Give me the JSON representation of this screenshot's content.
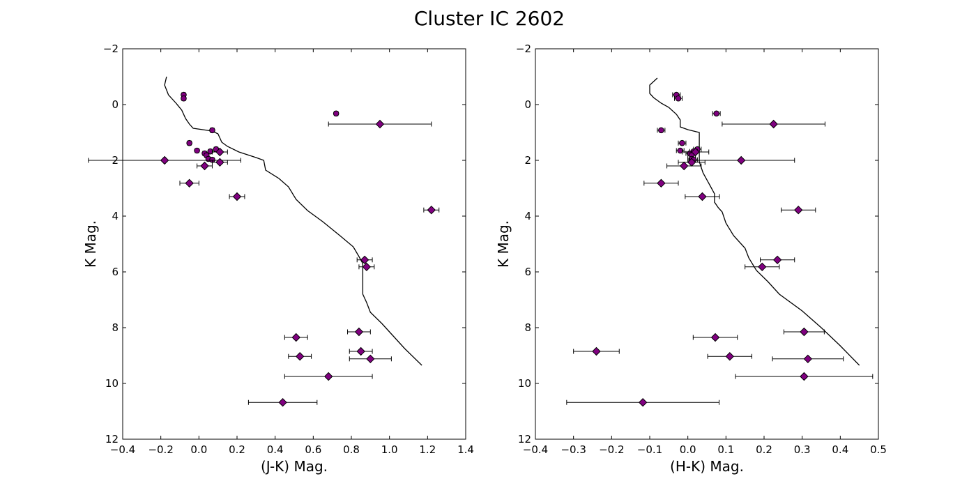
{
  "title": "Cluster IC 2602",
  "chart_data": [
    {
      "type": "scatter",
      "xlabel": "(J-K) Mag.",
      "ylabel": "K Mag.",
      "xlim": [
        -0.4,
        1.4
      ],
      "ylim": [
        12,
        -2
      ],
      "y_inverted": true,
      "xticks": [
        -0.4,
        -0.2,
        0.0,
        0.2,
        0.4,
        0.6,
        0.8,
        1.0,
        1.2,
        1.4
      ],
      "xtick_labels": [
        "−0.4",
        "−0.2",
        "0.0",
        "0.2",
        "0.4",
        "0.6",
        "0.8",
        "1.0",
        "1.2",
        "1.4"
      ],
      "yticks": [
        -2,
        0,
        2,
        4,
        6,
        8,
        10,
        12
      ],
      "ytick_labels": [
        "−2",
        "0",
        "2",
        "4",
        "6",
        "8",
        "10",
        "12"
      ],
      "grid": false,
      "sequence_line": [
        [
          -0.17,
          -1.0
        ],
        [
          -0.18,
          -0.7
        ],
        [
          -0.16,
          -0.35
        ],
        [
          -0.12,
          -0.05
        ],
        [
          -0.09,
          0.2
        ],
        [
          -0.07,
          0.5
        ],
        [
          -0.05,
          0.7
        ],
        [
          -0.03,
          0.85
        ],
        [
          0.02,
          0.9
        ],
        [
          0.07,
          0.95
        ],
        [
          0.1,
          1.05
        ],
        [
          0.12,
          1.35
        ],
        [
          0.15,
          1.5
        ],
        [
          0.21,
          1.7
        ],
        [
          0.3,
          1.9
        ],
        [
          0.34,
          2.0
        ],
        [
          0.35,
          2.35
        ],
        [
          0.42,
          2.65
        ],
        [
          0.47,
          2.95
        ],
        [
          0.51,
          3.4
        ],
        [
          0.57,
          3.8
        ],
        [
          0.65,
          4.2
        ],
        [
          0.74,
          4.7
        ],
        [
          0.81,
          5.1
        ],
        [
          0.84,
          5.45
        ],
        [
          0.86,
          5.7
        ],
        [
          0.86,
          6.1
        ],
        [
          0.86,
          6.45
        ],
        [
          0.86,
          6.8
        ],
        [
          0.88,
          7.1
        ],
        [
          0.9,
          7.45
        ],
        [
          0.96,
          7.85
        ],
        [
          1.02,
          8.3
        ],
        [
          1.08,
          8.75
        ],
        [
          1.17,
          9.35
        ]
      ],
      "circles": [
        {
          "x": -0.08,
          "y": -0.35,
          "xerr": 0.01
        },
        {
          "x": -0.08,
          "y": -0.22,
          "xerr": 0.01
        },
        {
          "x": 0.72,
          "y": 0.32,
          "xerr": 0.01
        },
        {
          "x": 0.07,
          "y": 0.92,
          "xerr": 0.01
        },
        {
          "x": -0.05,
          "y": 1.38,
          "xerr": 0.01
        },
        {
          "x": 0.09,
          "y": 1.6,
          "xerr": 0.01
        },
        {
          "x": -0.01,
          "y": 1.65,
          "xerr": 0.01
        },
        {
          "x": 0.06,
          "y": 1.68,
          "xerr": 0.01
        },
        {
          "x": 0.03,
          "y": 1.75,
          "xerr": 0.01
        },
        {
          "x": 0.04,
          "y": 1.82,
          "xerr": 0.01
        },
        {
          "x": 0.05,
          "y": 1.95,
          "xerr": 0.01
        },
        {
          "x": 0.07,
          "y": 1.98,
          "xerr": 0.01
        }
      ],
      "diamonds": [
        {
          "x": 0.95,
          "y": 0.7,
          "xerr": 0.27
        },
        {
          "x": 0.11,
          "y": 1.7,
          "xerr": 0.04
        },
        {
          "x": -0.18,
          "y": 2.0,
          "xerr": 0.4
        },
        {
          "x": 0.11,
          "y": 2.07,
          "xerr": 0.04
        },
        {
          "x": 0.03,
          "y": 2.2,
          "xerr": 0.04
        },
        {
          "x": -0.05,
          "y": 2.82,
          "xerr": 0.05
        },
        {
          "x": 0.2,
          "y": 3.3,
          "xerr": 0.04
        },
        {
          "x": 1.22,
          "y": 3.78,
          "xerr": 0.04
        },
        {
          "x": 0.87,
          "y": 5.57,
          "xerr": 0.04
        },
        {
          "x": 0.88,
          "y": 5.82,
          "xerr": 0.04
        },
        {
          "x": 0.84,
          "y": 8.15,
          "xerr": 0.06
        },
        {
          "x": 0.51,
          "y": 8.35,
          "xerr": 0.06
        },
        {
          "x": 0.85,
          "y": 8.85,
          "xerr": 0.06
        },
        {
          "x": 0.53,
          "y": 9.03,
          "xerr": 0.06
        },
        {
          "x": 0.9,
          "y": 9.12,
          "xerr": 0.11
        },
        {
          "x": 0.68,
          "y": 9.75,
          "xerr": 0.23
        },
        {
          "x": 0.44,
          "y": 10.68,
          "xerr": 0.18
        }
      ]
    },
    {
      "type": "scatter",
      "xlabel": "(H-K) Mag.",
      "ylabel": "K Mag.",
      "xlim": [
        -0.4,
        0.5
      ],
      "ylim": [
        12,
        -2
      ],
      "y_inverted": true,
      "xticks": [
        -0.4,
        -0.3,
        -0.2,
        -0.1,
        0.0,
        0.1,
        0.2,
        0.3,
        0.4,
        0.5
      ],
      "xtick_labels": [
        "−0.4",
        "−0.3",
        "−0.2",
        "−0.1",
        "0.0",
        "0.1",
        "0.2",
        "0.3",
        "0.4",
        "0.5"
      ],
      "yticks": [
        -2,
        0,
        2,
        4,
        6,
        8,
        10,
        12
      ],
      "ytick_labels": [
        "−2",
        "0",
        "2",
        "4",
        "6",
        "8",
        "10",
        "12"
      ],
      "grid": false,
      "sequence_line": [
        [
          -0.08,
          -0.95
        ],
        [
          -0.1,
          -0.7
        ],
        [
          -0.1,
          -0.4
        ],
        [
          -0.09,
          -0.25
        ],
        [
          -0.07,
          -0.05
        ],
        [
          -0.05,
          0.1
        ],
        [
          -0.03,
          0.35
        ],
        [
          -0.02,
          0.55
        ],
        [
          -0.02,
          0.8
        ],
        [
          0.0,
          0.9
        ],
        [
          0.03,
          1.0
        ],
        [
          0.03,
          1.2
        ],
        [
          0.03,
          1.4
        ],
        [
          0.03,
          1.6
        ],
        [
          0.03,
          1.8
        ],
        [
          0.03,
          2.05
        ],
        [
          0.04,
          2.45
        ],
        [
          0.06,
          2.95
        ],
        [
          0.07,
          3.2
        ],
        [
          0.07,
          3.5
        ],
        [
          0.08,
          3.7
        ],
        [
          0.09,
          3.85
        ],
        [
          0.1,
          4.25
        ],
        [
          0.12,
          4.7
        ],
        [
          0.15,
          5.15
        ],
        [
          0.16,
          5.5
        ],
        [
          0.18,
          5.95
        ],
        [
          0.21,
          6.35
        ],
        [
          0.24,
          6.8
        ],
        [
          0.3,
          7.4
        ],
        [
          0.35,
          8.0
        ],
        [
          0.4,
          8.65
        ],
        [
          0.45,
          9.35
        ]
      ],
      "circles": [
        {
          "x": -0.03,
          "y": -0.35,
          "xerr": 0.01
        },
        {
          "x": -0.025,
          "y": -0.22,
          "xerr": 0.01
        },
        {
          "x": 0.075,
          "y": 0.32,
          "xerr": 0.01
        },
        {
          "x": -0.07,
          "y": 0.92,
          "xerr": 0.01
        },
        {
          "x": -0.015,
          "y": 1.38,
          "xerr": 0.01
        },
        {
          "x": 0.025,
          "y": 1.6,
          "xerr": 0.01
        },
        {
          "x": -0.02,
          "y": 1.65,
          "xerr": 0.01
        },
        {
          "x": 0.015,
          "y": 1.68,
          "xerr": 0.01
        },
        {
          "x": 0.005,
          "y": 1.75,
          "xerr": 0.01
        },
        {
          "x": 0.01,
          "y": 1.82,
          "xerr": 0.01
        },
        {
          "x": 0.01,
          "y": 1.95,
          "xerr": 0.01
        },
        {
          "x": 0.015,
          "y": 1.98,
          "xerr": 0.01
        }
      ],
      "diamonds": [
        {
          "x": 0.225,
          "y": 0.7,
          "xerr": 0.135
        },
        {
          "x": 0.02,
          "y": 1.7,
          "xerr": 0.035
        },
        {
          "x": 0.14,
          "y": 2.0,
          "xerr": 0.14
        },
        {
          "x": 0.01,
          "y": 2.07,
          "xerr": 0.035
        },
        {
          "x": -0.01,
          "y": 2.2,
          "xerr": 0.045
        },
        {
          "x": -0.07,
          "y": 2.82,
          "xerr": 0.045
        },
        {
          "x": 0.038,
          "y": 3.3,
          "xerr": 0.045
        },
        {
          "x": 0.29,
          "y": 3.78,
          "xerr": 0.045
        },
        {
          "x": 0.235,
          "y": 5.57,
          "xerr": 0.045
        },
        {
          "x": 0.195,
          "y": 5.82,
          "xerr": 0.045
        },
        {
          "x": 0.305,
          "y": 8.15,
          "xerr": 0.053
        },
        {
          "x": 0.072,
          "y": 8.35,
          "xerr": 0.058
        },
        {
          "x": -0.24,
          "y": 8.85,
          "xerr": 0.06
        },
        {
          "x": 0.11,
          "y": 9.03,
          "xerr": 0.058
        },
        {
          "x": 0.315,
          "y": 9.12,
          "xerr": 0.093
        },
        {
          "x": 0.305,
          "y": 9.75,
          "xerr": 0.18
        },
        {
          "x": -0.118,
          "y": 10.68,
          "xerr": 0.2
        }
      ]
    }
  ]
}
